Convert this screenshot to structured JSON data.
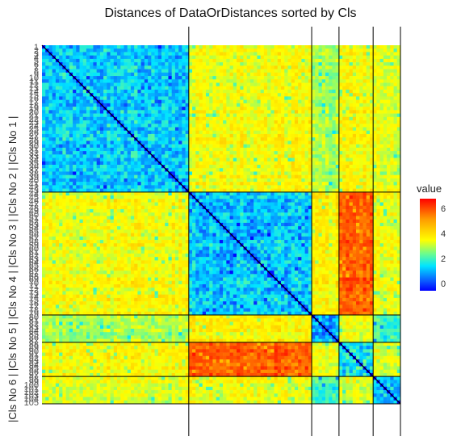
{
  "chart_data": {
    "type": "heatmap",
    "title": "Distances of DataOrDistances sorted by Cls",
    "ylabel": "|Cls No 6 | |Cls No 5 | |Cls No 4 | |Cls No 3 | |Cls No 2 | |Cls No 1 |",
    "legend_title": "value",
    "legend_ticks": [
      "6",
      "4",
      "2",
      "0"
    ],
    "value_range": [
      0,
      7.3
    ],
    "cluster_boundaries": [
      0,
      0.406,
      0.754,
      0.833,
      0.92,
      1.0
    ],
    "cluster_mean_distance": [
      [
        1.8,
        4.0,
        3.3,
        4.0,
        3.8,
        3.6
      ],
      [
        4.0,
        1.7,
        4.2,
        6.2,
        4.0,
        4.4
      ],
      [
        3.3,
        4.2,
        1.5,
        3.9,
        2.6,
        3.4
      ],
      [
        4.0,
        6.2,
        3.9,
        2.1,
        3.8,
        3.6
      ],
      [
        3.8,
        4.0,
        2.6,
        3.8,
        1.8,
        3.0
      ],
      [
        3.6,
        4.4,
        3.4,
        3.6,
        3.0,
        2.2
      ]
    ],
    "colorscale": [
      "#0000ff",
      "#00cfff",
      "#5dfc9a",
      "#ffff00",
      "#ff8c00",
      "#ff0000"
    ]
  }
}
